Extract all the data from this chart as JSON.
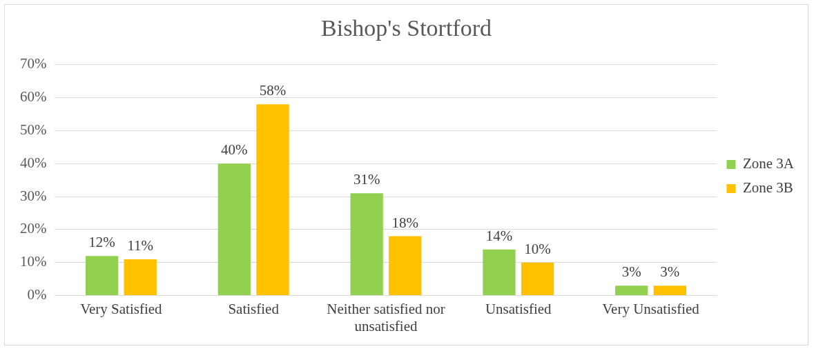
{
  "chart_data": {
    "type": "bar",
    "title": "Bishop's Stortford",
    "categories": [
      "Very Satisfied",
      "Satisfied",
      "Neither satisfied nor unsatisfied",
      "Unsatisfied",
      "Very Unsatisfied"
    ],
    "series": [
      {
        "name": "Zone 3A",
        "color": "#92d050",
        "values": [
          12,
          40,
          31,
          14,
          3
        ],
        "value_labels": [
          "12%",
          "40%",
          "31%",
          "14%",
          "3%"
        ]
      },
      {
        "name": "Zone 3B",
        "color": "#ffc000",
        "values": [
          11,
          58,
          18,
          10,
          3
        ],
        "value_labels": [
          "11%",
          "58%",
          "18%",
          "10%",
          "3%"
        ]
      }
    ],
    "ylim": [
      0,
      70
    ],
    "yticks": [
      {
        "value": 0,
        "label": "0%"
      },
      {
        "value": 10,
        "label": "10%"
      },
      {
        "value": 20,
        "label": "20%"
      },
      {
        "value": 30,
        "label": "30%"
      },
      {
        "value": 40,
        "label": "40%"
      },
      {
        "value": 50,
        "label": "50%"
      },
      {
        "value": 60,
        "label": "60%"
      },
      {
        "value": 70,
        "label": "70%"
      }
    ],
    "grid": "y",
    "legend": "right"
  }
}
